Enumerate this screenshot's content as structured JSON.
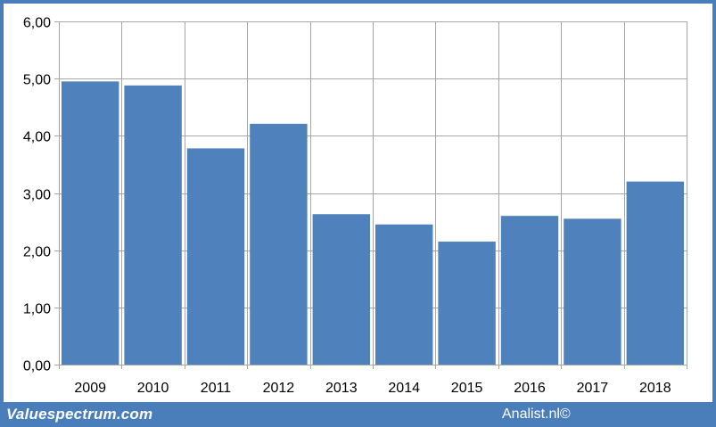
{
  "chart_data": {
    "type": "bar",
    "categories": [
      "2009",
      "2010",
      "2011",
      "2012",
      "2013",
      "2014",
      "2015",
      "2016",
      "2017",
      "2018"
    ],
    "values": [
      4.95,
      4.88,
      3.78,
      4.21,
      2.63,
      2.45,
      2.15,
      2.6,
      2.55,
      3.2
    ],
    "title": "",
    "xlabel": "",
    "ylabel": "",
    "ylim": [
      0,
      6
    ],
    "yticks": [
      "0,00",
      "1,00",
      "2,00",
      "3,00",
      "4,00",
      "5,00",
      "6,00"
    ],
    "grid": true,
    "bar_color": "#4f81bd"
  },
  "footer": {
    "left": "Valuespectrum.com",
    "right": "Analist.nl©"
  },
  "colors": {
    "frame": "#4a7ebb",
    "bar": "#4f81bd",
    "grid": "#a6a6a6"
  }
}
